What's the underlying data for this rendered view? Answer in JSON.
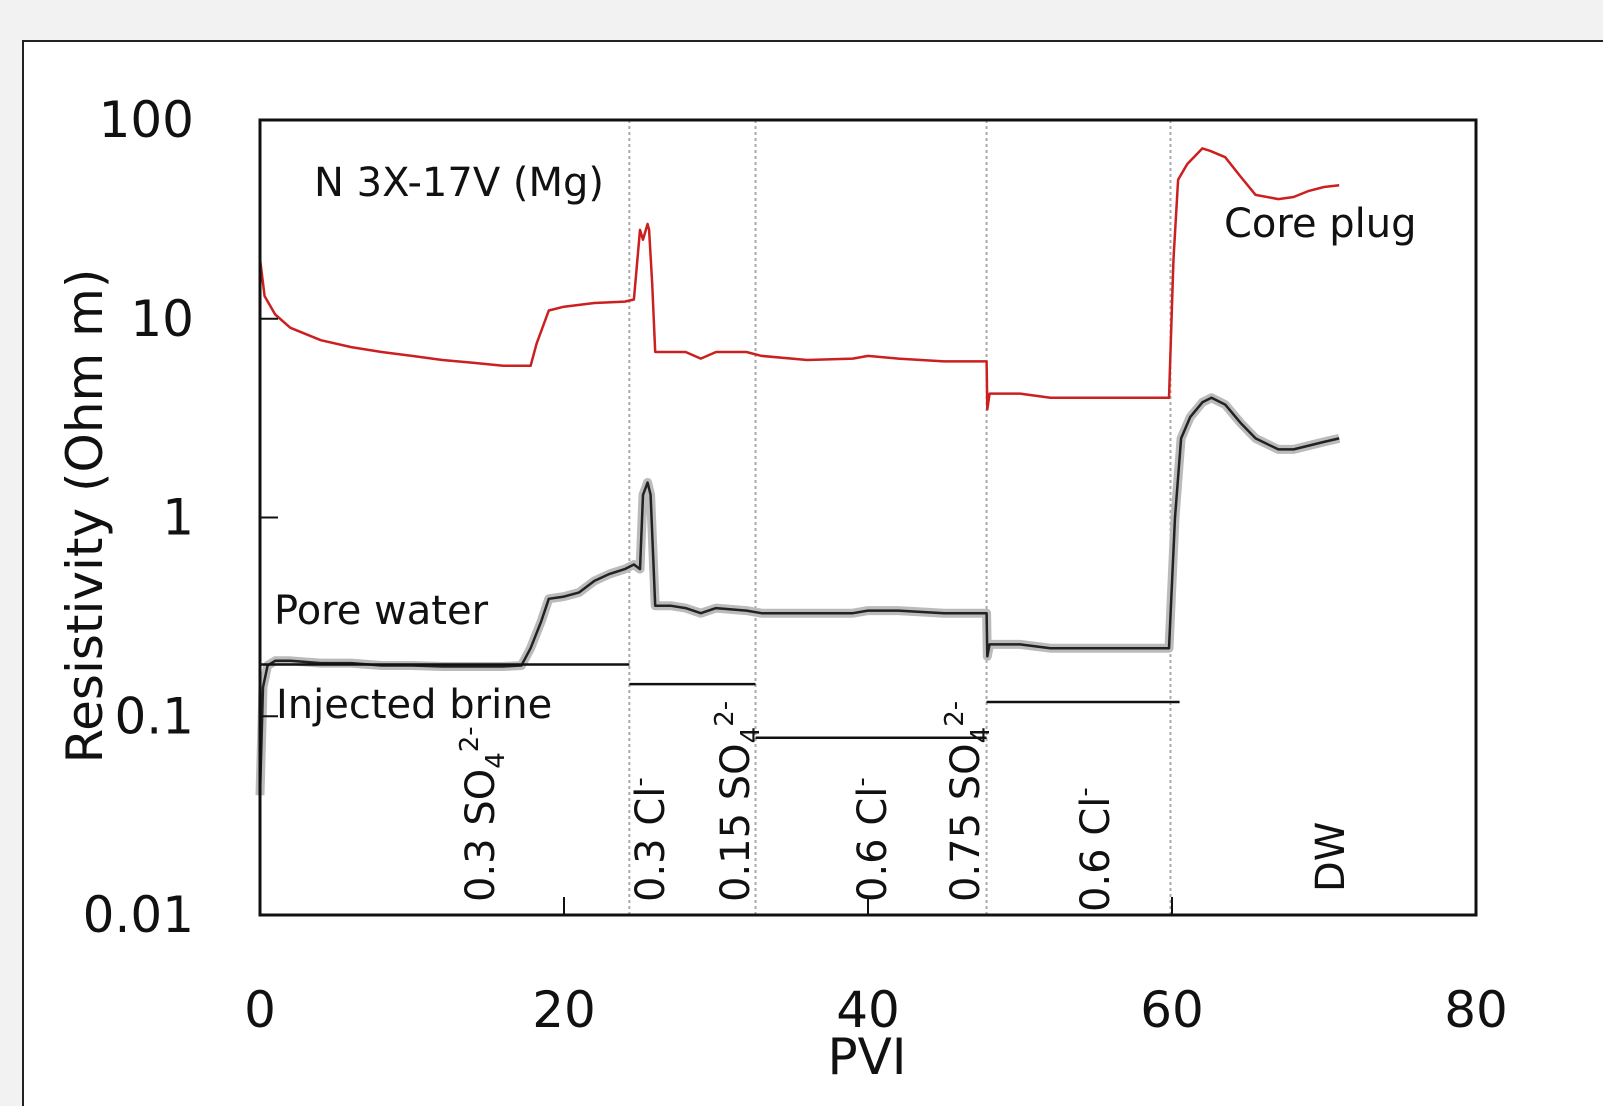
{
  "chart_data": {
    "type": "line",
    "sample_label": "N 3X-17V (Mg)",
    "xlabel": "PVI",
    "ylabel": "Resistivity (Ohm m)",
    "xlim": [
      0,
      80
    ],
    "ylim": [
      0.01,
      100
    ],
    "y_scale": "log",
    "x_ticks": [
      "0",
      "20",
      "40",
      "60",
      "80"
    ],
    "y_ticks": [
      "100",
      "10",
      "1",
      "0.1",
      "0.01"
    ],
    "grid": false,
    "stage_boundaries": [
      24.3,
      32.6,
      47.8,
      59.9
    ],
    "series": [
      {
        "name": "Core plug",
        "color": "#cc1f1f",
        "x": [
          0,
          0,
          0.3,
          1,
          2,
          4,
          6,
          8,
          10,
          12,
          14,
          16,
          17.8,
          18.2,
          19,
          20,
          22,
          24,
          24.6,
          25,
          25.2,
          25.5,
          25.6,
          25.8,
          26,
          26.2,
          28,
          29,
          30,
          32,
          33,
          36,
          39,
          40,
          42,
          45,
          47.8,
          47.85,
          48,
          50,
          52,
          55,
          57,
          59.8,
          60.1,
          60.4,
          61,
          62,
          62.5,
          63.5,
          64.5,
          65.5,
          67,
          68,
          69,
          70,
          71
        ],
        "y": [
          100,
          20,
          13,
          10.5,
          9,
          7.8,
          7.2,
          6.8,
          6.5,
          6.2,
          6.0,
          5.8,
          5.8,
          7.5,
          11,
          11.5,
          12,
          12.2,
          12.5,
          28,
          25,
          30,
          28,
          15,
          6.8,
          6.8,
          6.8,
          6.3,
          6.8,
          6.8,
          6.5,
          6.2,
          6.3,
          6.5,
          6.3,
          6.1,
          6.1,
          3.5,
          4.2,
          4.2,
          4.0,
          4.0,
          4.0,
          4.0,
          20,
          50,
          60,
          72,
          70,
          65,
          52,
          42,
          40,
          41,
          44,
          46,
          47
        ]
      },
      {
        "name": "Pore water",
        "color": "#222222",
        "x": [
          0,
          0.2,
          0.5,
          1,
          2,
          4,
          6,
          8,
          10,
          12,
          14,
          16,
          17.2,
          17.8,
          18.5,
          19,
          20,
          21,
          22,
          23,
          24,
          24.6,
          25,
          25.2,
          25.5,
          25.7,
          26,
          27,
          28,
          29,
          30,
          32,
          33,
          36,
          39,
          40,
          42,
          45,
          47.8,
          47.85,
          48,
          50,
          52,
          55,
          57,
          59.8,
          60.2,
          60.6,
          61.2,
          62,
          62.6,
          63.5,
          64.5,
          65.5,
          67,
          68,
          69,
          70,
          71
        ],
        "y": [
          0.04,
          0.14,
          0.18,
          0.19,
          0.19,
          0.185,
          0.185,
          0.18,
          0.18,
          0.178,
          0.178,
          0.178,
          0.18,
          0.22,
          0.3,
          0.39,
          0.4,
          0.42,
          0.48,
          0.52,
          0.55,
          0.58,
          0.55,
          1.3,
          1.5,
          1.3,
          0.36,
          0.36,
          0.35,
          0.33,
          0.35,
          0.34,
          0.33,
          0.33,
          0.33,
          0.34,
          0.34,
          0.33,
          0.33,
          0.2,
          0.23,
          0.23,
          0.22,
          0.22,
          0.22,
          0.22,
          1.0,
          2.5,
          3.2,
          3.8,
          4.0,
          3.7,
          3.0,
          2.5,
          2.2,
          2.2,
          2.3,
          2.4,
          2.5
        ]
      },
      {
        "name": "Injected brine",
        "color": "#111111",
        "segments": [
          {
            "x": [
              0,
              24.3
            ],
            "y": 0.182
          },
          {
            "x": [
              24.3,
              32.6
            ],
            "y": 0.145
          },
          {
            "x": [
              32.6,
              47.8
            ],
            "y": 0.078
          },
          {
            "x": [
              47.8,
              60.5
            ],
            "y": 0.118
          }
        ]
      }
    ],
    "annotations": [
      {
        "text": "Core plug",
        "series": "Core plug"
      },
      {
        "text": "Pore water",
        "series": "Pore water"
      },
      {
        "text": "Injected brine",
        "series": "Injected brine"
      }
    ],
    "stage_labels": [
      {
        "lines": [
          {
            "base": "0.3 SO",
            "sub": "4",
            "sup": "2-"
          }
        ]
      },
      {
        "lines": [
          {
            "base": "0.3 Cl",
            "sub": "",
            "sup": "-"
          },
          {
            "base": "0.15 SO",
            "sub": "4",
            "sup": "2-"
          }
        ]
      },
      {
        "lines": [
          {
            "base": "0.6 Cl",
            "sub": "",
            "sup": "-"
          },
          {
            "base": "0.75 SO",
            "sub": "4",
            "sup": "2-"
          }
        ]
      },
      {
        "lines": [
          {
            "base": "0.6 Cl",
            "sub": "",
            "sup": "-"
          }
        ]
      },
      {
        "lines": [
          {
            "base": "DW",
            "sub": "",
            "sup": ""
          }
        ]
      }
    ]
  }
}
